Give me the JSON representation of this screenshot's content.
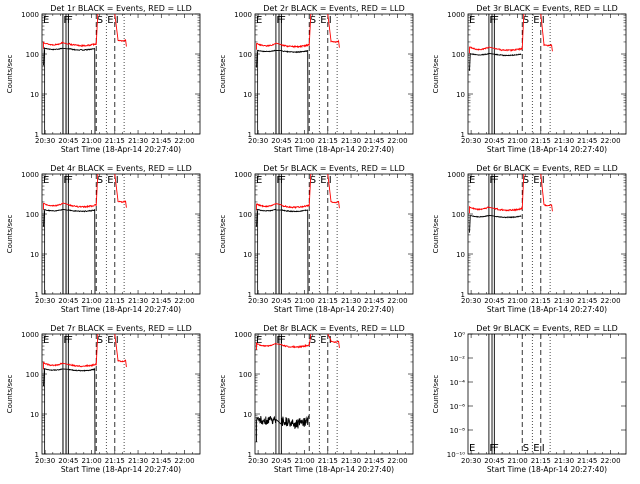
{
  "x_tick_labels": [
    "20:30",
    "20:45",
    "21:00",
    "21:15",
    "21:30",
    "21:45",
    "22:00"
  ],
  "xlabel": "Start Time (18-Apr-14 20:27:40)",
  "ylabel": "Counts/sec",
  "y_tick_labels": [
    "1",
    "10",
    "100",
    "1000"
  ],
  "y_tick_labels_panel9": [
    "10⁻¹⁰",
    "10⁻⁸",
    "10⁻⁶",
    "10⁻⁴",
    "10⁻²",
    "10⁰"
  ],
  "markers": {
    "E": "E",
    "F": "F",
    "S": "S",
    "I": "I"
  },
  "colors": {
    "events": "#000000",
    "lld": "#ff0000"
  },
  "chart_data": [
    {
      "type": "line",
      "title": "Det 1r BLACK = Events, RED = LLD",
      "panel_row": 0,
      "panel_col": 0,
      "ylim_log": [
        1,
        1000
      ],
      "events_base": 130,
      "lld_base": 170,
      "events_drop_to_1": true,
      "mid_step": 1
    },
    {
      "type": "line",
      "title": "Det 2r BLACK = Events, RED = LLD",
      "panel_row": 0,
      "panel_col": 1,
      "ylim_log": [
        1,
        1000
      ],
      "events_base": 115,
      "lld_base": 160,
      "events_drop_to_1": true,
      "mid_step": 1
    },
    {
      "type": "line",
      "title": "Det 3r BLACK = Events, RED = LLD",
      "panel_row": 0,
      "panel_col": 2,
      "ylim_log": [
        1,
        1000
      ],
      "events_base": 95,
      "lld_base": 130,
      "events_drop_to_1": false,
      "mid_step": 0
    },
    {
      "type": "line",
      "title": "Det 4r BLACK = Events, RED = LLD",
      "panel_row": 1,
      "panel_col": 0,
      "ylim_log": [
        1,
        1000
      ],
      "events_base": 120,
      "lld_base": 160,
      "events_drop_to_1": true,
      "mid_step": 1
    },
    {
      "type": "line",
      "title": "Det 5r BLACK = Events, RED = LLD",
      "panel_row": 1,
      "panel_col": 1,
      "ylim_log": [
        1,
        1000
      ],
      "events_base": 120,
      "lld_base": 155,
      "events_drop_to_1": true,
      "mid_step": 1
    },
    {
      "type": "line",
      "title": "Det 6r BLACK = Events, RED = LLD",
      "panel_row": 1,
      "panel_col": 2,
      "ylim_log": [
        1,
        1000
      ],
      "events_base": 85,
      "lld_base": 130,
      "events_drop_to_1": false,
      "mid_step": 0
    },
    {
      "type": "line",
      "title": "Det 7r BLACK = Events, RED = LLD",
      "panel_row": 2,
      "panel_col": 0,
      "ylim_log": [
        1,
        1000
      ],
      "events_base": 125,
      "lld_base": 165,
      "events_drop_to_1": true,
      "mid_step": 1
    },
    {
      "type": "line",
      "title": "Det 8r BLACK = Events, RED = LLD",
      "panel_row": 2,
      "panel_col": 1,
      "ylim_log": [
        1,
        1000
      ],
      "events_base": 7,
      "lld_base": 500,
      "events_drop_to_1": false,
      "noisy": true,
      "mid_step": 0
    },
    {
      "type": "line",
      "title": "Det 9r BLACK = Events, RED = LLD",
      "panel_row": 2,
      "panel_col": 2,
      "ylim_log": [
        1e-10,
        1
      ],
      "events_base": null,
      "lld_base": null,
      "empty": true
    }
  ]
}
